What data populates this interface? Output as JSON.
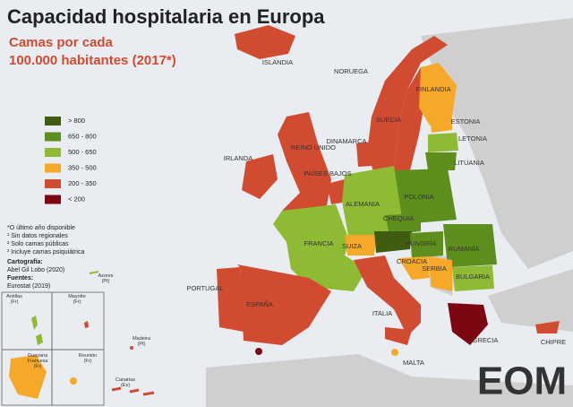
{
  "title": "Capacidad hospitalaria en Europa",
  "subtitle": [
    "Camas por cada",
    "100.000 habitantes (2017*)"
  ],
  "legend": [
    {
      "label": "> 800",
      "color": "#3f5c10"
    },
    {
      "label": "650 - 800",
      "color": "#5e8e1e"
    },
    {
      "label": "500 - 650",
      "color": "#8fba34"
    },
    {
      "label": "350 - 500",
      "color": "#f6a829"
    },
    {
      "label": "200 - 350",
      "color": "#d04b30"
    },
    {
      "label": "< 200",
      "color": "#7c0612"
    }
  ],
  "countries": [
    "ISLANDIA",
    "NORUEGA",
    "FINLANDIA",
    "SUECIA",
    "ESTONIA",
    "LETONIA",
    "LITUANIA",
    "DINAMARCA",
    "REINO UNIDO",
    "IRLANDA",
    "PAÍSES BAJOS",
    "POLONIA",
    "ALEMANIA",
    "CHEQUIA",
    "FRANCIA",
    "SUIZA",
    "HUNGRÍA",
    "RUMANÍA",
    "CROACIA",
    "SERBIA",
    "BULGARIA",
    "PORTUGAL",
    "ESPAÑA",
    "ITALIA",
    "GRECIA",
    "MALTA",
    "CHIPRE"
  ],
  "notes": [
    "*O último año disponible",
    "¹ Sin datos regionales",
    "² Solo camas públicas",
    "³ Incluye camas psiquiátrica"
  ],
  "credits": {
    "cartography_label": "Cartografía:",
    "cartography": "Abel Gil Lobo (2020)",
    "sources_label": "Fuentes:",
    "sources": "Eurostat (2019)"
  },
  "insets": [
    "Antillas\n(Fr)",
    "Mayotte\n(Fr)",
    "Guayana\nFrancesa\n(Fr)",
    "Reunión\n(Fr)",
    "Azores\n(Pt)",
    "Madeira\n(Pt)",
    "Canarias\n(Es)"
  ],
  "logo": "EOM"
}
